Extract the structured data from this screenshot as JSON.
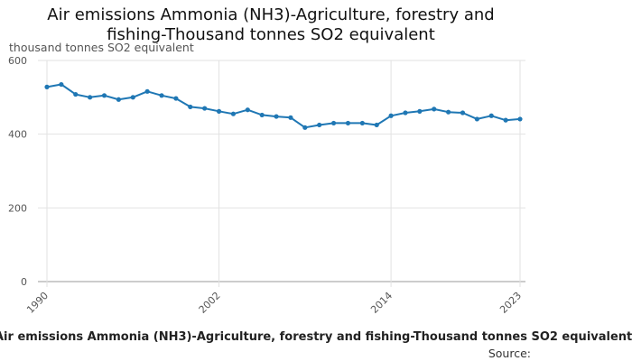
{
  "chart_data": {
    "type": "line",
    "title_line1": "Air emissions Ammonia (NH3)-Agriculture, forestry and",
    "title_line2": "fishing-Thousand tonnes SO2 equivalent",
    "ylabel": "thousand tonnes SO2 equivalent",
    "series_label": "Air emissions Ammonia (NH3)-Agriculture, forestry and fishing-Thousand tonnes SO2 equivalent",
    "source_label": "Source:",
    "xlim": [
      1990,
      2023
    ],
    "ylim": [
      0,
      600
    ],
    "x_ticks": [
      "1990",
      "2002",
      "2014",
      "2023"
    ],
    "y_ticks": [
      "0",
      "200",
      "400",
      "600"
    ],
    "grid": true,
    "color": "#1f77b4",
    "series": [
      {
        "x": [
          1990,
          1991,
          1992,
          1993,
          1994,
          1995,
          1996,
          1997,
          1998,
          1999,
          2000,
          2001,
          2002,
          2003,
          2004,
          2005,
          2006,
          2007,
          2008,
          2009,
          2010,
          2011,
          2012,
          2013,
          2014,
          2015,
          2016,
          2017,
          2018,
          2019,
          2020,
          2021,
          2022,
          2023
        ],
        "values": [
          528,
          535,
          508,
          500,
          505,
          494,
          500,
          516,
          505,
          497,
          474,
          470,
          462,
          455,
          466,
          452,
          448,
          445,
          418,
          425,
          430,
          430,
          430,
          425,
          450,
          458,
          462,
          468,
          460,
          458,
          441,
          450,
          438,
          441
        ]
      }
    ]
  }
}
